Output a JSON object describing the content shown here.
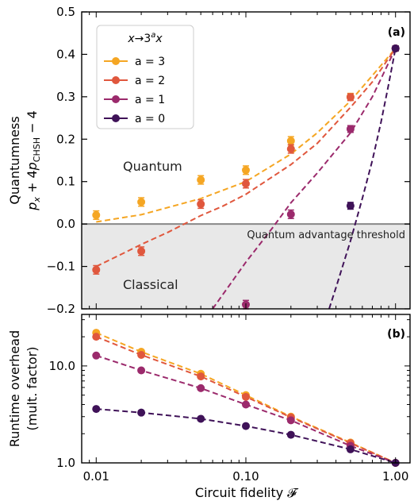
{
  "colors": {
    "a3": "#f5a623",
    "a2": "#e0573d",
    "a1": "#9b2a6c",
    "a0": "#3f1258",
    "threshold": "#888888",
    "classical_fill": "#e8e8e8"
  },
  "chart_data": [
    {
      "panel": "(a)",
      "type": "scatter",
      "ylabel_line1": "Quantumness",
      "ylabel_line2": "p_x + 4p_CHSH − 4",
      "xscale": "log",
      "xlim": [
        0.008,
        1.25
      ],
      "ylim": [
        -0.2,
        0.5
      ],
      "yticks": [
        "0.5",
        "0.4",
        "0.3",
        "0.2",
        "0.1",
        "0.0",
        "−0.1",
        "−0.2"
      ],
      "ytick_values": [
        0.5,
        0.4,
        0.3,
        0.2,
        0.1,
        0.0,
        -0.1,
        -0.2
      ],
      "threshold": {
        "y": 0.0,
        "label": "Quantum advantage threshold"
      },
      "region_labels": {
        "quantum": "Quantum",
        "classical": "Classical"
      },
      "legend": {
        "title": "x→3ᵃx",
        "entries": [
          "a = 3",
          "a = 2",
          "a = 1",
          "a = 0"
        ],
        "placement": "upper-left"
      },
      "series": [
        {
          "name": "a = 3",
          "key": "a3",
          "x": [
            0.01,
            0.02,
            0.05,
            0.1,
            0.2,
            0.5,
            1.0
          ],
          "y": [
            0.021,
            0.052,
            0.104,
            0.127,
            0.196,
            0.3,
            0.414
          ],
          "yerr": [
            0.01,
            0.01,
            0.01,
            0.01,
            0.01,
            0.008,
            0.006
          ],
          "fit_x": [
            0.01,
            0.02,
            0.05,
            0.1,
            0.2,
            0.3,
            0.5,
            0.7,
            1.0
          ],
          "fit_y": [
            0.005,
            0.022,
            0.06,
            0.1,
            0.165,
            0.215,
            0.29,
            0.35,
            0.414
          ]
        },
        {
          "name": "a = 2",
          "key": "a2",
          "x": [
            0.01,
            0.02,
            0.05,
            0.1,
            0.2,
            0.5,
            1.0
          ],
          "y": [
            -0.108,
            -0.064,
            0.047,
            0.095,
            0.177,
            0.299,
            0.414
          ],
          "yerr": [
            0.01,
            0.01,
            0.01,
            0.01,
            0.01,
            0.008,
            0.006
          ],
          "fit_x": [
            0.01,
            0.015,
            0.02,
            0.03,
            0.05,
            0.07,
            0.1,
            0.2,
            0.3,
            0.5,
            0.7,
            1.0
          ],
          "fit_y": [
            -0.1,
            -0.07,
            -0.048,
            -0.02,
            0.02,
            0.042,
            0.07,
            0.14,
            0.19,
            0.275,
            0.335,
            0.414
          ]
        },
        {
          "name": "a = 1",
          "key": "a1",
          "x": [
            0.1,
            0.2,
            0.5,
            1.0
          ],
          "y": [
            -0.19,
            0.023,
            0.224,
            0.414
          ],
          "yerr": [
            0.01,
            0.01,
            0.008,
            0.006
          ],
          "fit_x": [
            0.06,
            0.1,
            0.15,
            0.2,
            0.3,
            0.5,
            0.7,
            1.0
          ],
          "fit_y": [
            -0.2,
            -0.09,
            -0.01,
            0.05,
            0.12,
            0.215,
            0.3,
            0.414
          ]
        },
        {
          "name": "a = 0",
          "key": "a0",
          "x": [
            0.5,
            1.0
          ],
          "y": [
            0.043,
            0.414
          ],
          "yerr": [
            0.008,
            0.006
          ],
          "fit_x": [
            0.36,
            0.4,
            0.5,
            0.6,
            0.7,
            0.8,
            0.9,
            1.0
          ],
          "fit_y": [
            -0.2,
            -0.15,
            -0.04,
            0.06,
            0.15,
            0.24,
            0.33,
            0.414
          ]
        }
      ]
    },
    {
      "panel": "(b)",
      "type": "scatter",
      "ylabel_line1": "Runtime overhead",
      "ylabel_line2": "(mult. factor)",
      "xlabel": "Circuit fidelity 𝓕",
      "xscale": "log",
      "yscale": "log",
      "xlim": [
        0.008,
        1.25
      ],
      "ylim": [
        1.0,
        34
      ],
      "yticks": [
        "10.0",
        "1.0"
      ],
      "ytick_values": [
        10.0,
        1.0
      ],
      "xticks": [
        "0.01",
        "0.10",
        "1.00"
      ],
      "xtick_values": [
        0.01,
        0.1,
        1.0
      ],
      "series": [
        {
          "name": "a = 3",
          "key": "a3",
          "x": [
            0.01,
            0.02,
            0.05,
            0.1,
            0.2,
            0.5,
            1.0
          ],
          "y": [
            22.0,
            14.0,
            8.3,
            5.0,
            3.0,
            1.62,
            1.0
          ]
        },
        {
          "name": "a = 2",
          "key": "a2",
          "x": [
            0.01,
            0.02,
            0.05,
            0.1,
            0.2,
            0.5,
            1.0
          ],
          "y": [
            20.0,
            13.0,
            7.8,
            4.8,
            2.95,
            1.6,
            1.0
          ]
        },
        {
          "name": "a = 1",
          "key": "a1",
          "x": [
            0.01,
            0.02,
            0.05,
            0.1,
            0.2,
            0.5,
            1.0
          ],
          "y": [
            12.8,
            9.0,
            5.9,
            4.0,
            2.75,
            1.5,
            1.0
          ]
        },
        {
          "name": "a = 0",
          "key": "a0",
          "x": [
            0.01,
            0.02,
            0.05,
            0.1,
            0.2,
            0.5,
            1.0
          ],
          "y": [
            3.6,
            3.3,
            2.85,
            2.4,
            1.95,
            1.38,
            1.0
          ]
        }
      ]
    }
  ]
}
